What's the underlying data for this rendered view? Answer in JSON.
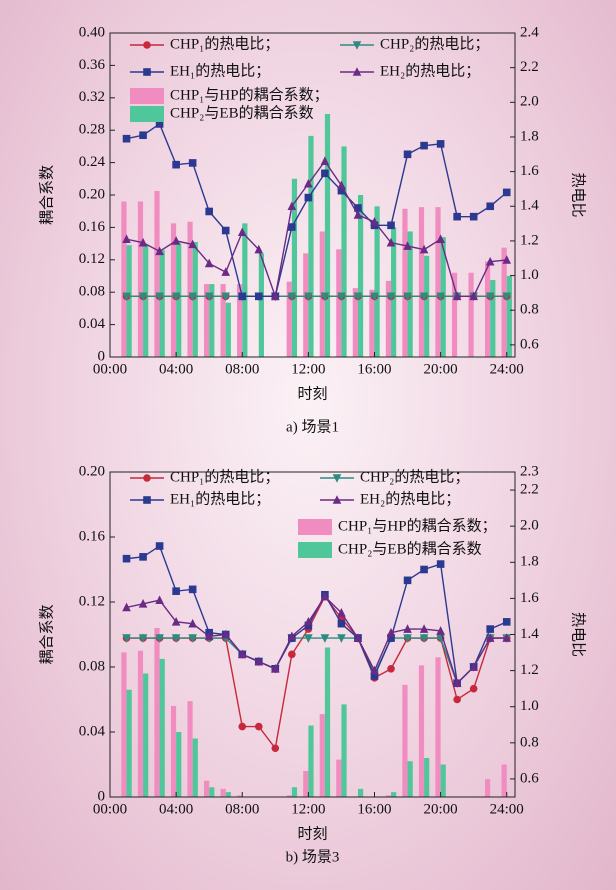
{
  "chart_data": [
    {
      "type": "bar-line",
      "caption": "a) 场景1",
      "xlabel": "时刻",
      "ylabel": "耦合系数",
      "y2label": "热电比",
      "x": [
        1,
        2,
        3,
        4,
        5,
        6,
        7,
        8,
        9,
        10,
        11,
        12,
        13,
        14,
        15,
        16,
        17,
        18,
        19,
        20,
        21,
        22,
        23,
        24
      ],
      "xlim": [
        0,
        24.5
      ],
      "xticks": [
        {
          "value": 0,
          "label": "00:00"
        },
        {
          "value": 4,
          "label": "04:00"
        },
        {
          "value": 8,
          "label": "08:00"
        },
        {
          "value": 12,
          "label": "12:00"
        },
        {
          "value": 16,
          "label": "16:00"
        },
        {
          "value": 20,
          "label": "20:00"
        },
        {
          "value": 24,
          "label": "24:00"
        }
      ],
      "ylim": [
        0,
        0.4
      ],
      "yticks": [
        0,
        0.04,
        0.08,
        0.12,
        0.16,
        {
          "value": 0.2,
          "label": "0.20"
        },
        0.24,
        0.28,
        0.32,
        0.36,
        {
          "value": 0.4,
          "label": "0.40"
        }
      ],
      "y2lim": [
        0.53,
        2.4
      ],
      "y2ticks": [
        0.6,
        0.8,
        {
          "value": 1,
          "label": "1.0"
        },
        1.2,
        1.4,
        1.6,
        1.8,
        {
          "value": 2,
          "label": "2.0"
        },
        2.2,
        2.4
      ],
      "series": [
        {
          "name": "CHP₁的热电比；",
          "color": "#c8283c",
          "marker": "circle",
          "kind": "line",
          "axis": "y2",
          "values": [
            0.88,
            0.88,
            0.88,
            0.88,
            0.88,
            0.88,
            0.88,
            0.88,
            0.88,
            0.88,
            0.88,
            0.88,
            0.88,
            0.88,
            0.88,
            0.88,
            0.88,
            0.88,
            0.88,
            0.88,
            0.88,
            0.88,
            0.88,
            0.88
          ]
        },
        {
          "name": "CHP₂的热电比；",
          "color": "#2e8b80",
          "marker": "triangle-down",
          "kind": "line",
          "axis": "y2",
          "values": [
            0.88,
            0.88,
            0.88,
            0.88,
            0.88,
            0.88,
            0.88,
            0.88,
            0.88,
            0.88,
            0.88,
            0.88,
            0.88,
            0.88,
            0.88,
            0.88,
            0.88,
            0.88,
            0.88,
            0.88,
            0.88,
            0.88,
            0.88,
            0.88
          ]
        },
        {
          "name": "EH₁的热电比；",
          "color": "#2b3990",
          "marker": "square",
          "kind": "line",
          "axis": "y2",
          "values": [
            1.79,
            1.81,
            1.875,
            1.64,
            1.65,
            1.37,
            1.26,
            0.88,
            0.88,
            0.88,
            1.28,
            1.45,
            1.59,
            1.49,
            1.39,
            1.29,
            1.29,
            1.7,
            1.75,
            1.76,
            1.34,
            1.34,
            1.4,
            1.48
          ]
        },
        {
          "name": "EH₂的热电比；",
          "color": "#6a2a86",
          "marker": "triangle",
          "kind": "line",
          "axis": "y2",
          "values": [
            1.21,
            1.19,
            1.14,
            1.2,
            1.18,
            1.07,
            1.02,
            1.25,
            1.15,
            0.88,
            1.4,
            1.53,
            1.66,
            1.52,
            1.35,
            1.31,
            1.19,
            1.17,
            1.15,
            1.21,
            0.88,
            0.88,
            1.08,
            1.09
          ]
        },
        {
          "name": "CHP₁与HP的耦合系数；",
          "color": "#f08cc0",
          "kind": "bar",
          "values": [
            0.192,
            0.192,
            0.205,
            0.165,
            0.167,
            0.09,
            0.09,
            0.09,
            0,
            0,
            0.093,
            0.128,
            0.155,
            0.133,
            0.085,
            0.083,
            0.094,
            0.183,
            0.185,
            0.185,
            0.104,
            0.104,
            0.118,
            0.135
          ]
        },
        {
          "name": "CHP₂与EB的耦合系数",
          "color": "#4fc79a",
          "kind": "bar",
          "values": [
            0.138,
            0.138,
            0.132,
            0.14,
            0.142,
            0.09,
            0.067,
            0.165,
            0.128,
            0,
            0.22,
            0.273,
            0.3,
            0.26,
            0.2,
            0.186,
            0.16,
            0.155,
            0.125,
            0.148,
            0,
            0,
            0.095,
            0.1
          ]
        }
      ]
    },
    {
      "type": "bar-line",
      "caption": "b) 场景3",
      "xlabel": "时刻",
      "ylabel": "耦合系数",
      "y2label": "热电比",
      "x": [
        1,
        2,
        3,
        4,
        5,
        6,
        7,
        8,
        9,
        10,
        11,
        12,
        13,
        14,
        15,
        16,
        17,
        18,
        19,
        20,
        21,
        22,
        23,
        24
      ],
      "xlim": [
        0,
        24.5
      ],
      "xticks": [
        {
          "value": 0,
          "label": "00:00"
        },
        {
          "value": 4,
          "label": "04:00"
        },
        {
          "value": 8,
          "label": "08:00"
        },
        {
          "value": 12,
          "label": "12:00"
        },
        {
          "value": 16,
          "label": "16:00"
        },
        {
          "value": 20,
          "label": "20:00"
        },
        {
          "value": 24,
          "label": "24:00"
        }
      ],
      "ylim": [
        0,
        0.2
      ],
      "yticks": [
        0,
        0.04,
        0.08,
        0.12,
        0.16,
        {
          "value": 0.2,
          "label": "0.20"
        }
      ],
      "y2lim": [
        0.5,
        2.3
      ],
      "y2ticks": [
        0.6,
        0.8,
        {
          "value": 1,
          "label": "1.0"
        },
        1.2,
        1.4,
        1.6,
        1.8,
        {
          "value": 2,
          "label": "2.0"
        },
        2.2,
        2.3
      ],
      "series": [
        {
          "name": "CHP₁的热电比；",
          "color": "#c8283c",
          "marker": "circle",
          "kind": "line",
          "axis": "y2",
          "values": [
            1.38,
            1.38,
            1.38,
            1.38,
            1.38,
            1.38,
            1.38,
            0.89,
            0.89,
            0.77,
            1.29,
            1.43,
            1.61,
            1.49,
            1.38,
            1.16,
            1.21,
            1.38,
            1.38,
            1.38,
            1.04,
            1.1,
            1.38,
            1.38
          ]
        },
        {
          "name": "CHP₂的热电比；",
          "color": "#2e8b80",
          "marker": "triangle-down",
          "kind": "line",
          "axis": "y2",
          "values": [
            1.38,
            1.38,
            1.38,
            1.38,
            1.38,
            1.38,
            1.38,
            1.29,
            1.25,
            1.21,
            1.38,
            1.38,
            1.38,
            1.38,
            1.38,
            1.18,
            1.38,
            1.38,
            1.38,
            1.38,
            1.13,
            1.22,
            1.38,
            1.38
          ]
        },
        {
          "name": "EH₁的热电比；",
          "color": "#2b3990",
          "marker": "square",
          "kind": "line",
          "axis": "y2",
          "values": [
            1.82,
            1.83,
            1.89,
            1.64,
            1.65,
            1.41,
            1.4,
            1.29,
            1.25,
            1.21,
            1.38,
            1.45,
            1.62,
            1.46,
            1.38,
            1.17,
            1.38,
            1.7,
            1.76,
            1.79,
            1.13,
            1.22,
            1.43,
            1.47
          ]
        },
        {
          "name": "EH₂的热电比；",
          "color": "#6a2a86",
          "marker": "triangle",
          "kind": "line",
          "axis": "y2",
          "values": [
            1.55,
            1.57,
            1.59,
            1.47,
            1.46,
            1.39,
            1.4,
            1.29,
            1.25,
            1.21,
            1.39,
            1.47,
            1.61,
            1.52,
            1.38,
            1.2,
            1.41,
            1.43,
            1.43,
            1.42,
            1.13,
            1.22,
            1.38,
            1.38
          ]
        },
        {
          "name": "CHP₁与HP的耦合系数；",
          "color": "#f08cc0",
          "kind": "bar",
          "values": [
            0.089,
            0.09,
            0.104,
            0.056,
            0.059,
            0.01,
            0.005,
            0.001,
            0,
            0,
            0.001,
            0.016,
            0.051,
            0.023,
            0,
            0,
            0.001,
            0.069,
            0.081,
            0.086,
            0,
            0,
            0.011,
            0.02
          ]
        },
        {
          "name": "CHP₂与EB的耦合系数",
          "color": "#4fc79a",
          "kind": "bar",
          "values": [
            0.066,
            0.076,
            0.085,
            0.04,
            0.036,
            0.006,
            0.003,
            0,
            0,
            0,
            0.006,
            0.044,
            0.092,
            0.057,
            0.005,
            0,
            0.003,
            0.022,
            0.024,
            0.02,
            0,
            0,
            0,
            0
          ]
        }
      ]
    }
  ]
}
